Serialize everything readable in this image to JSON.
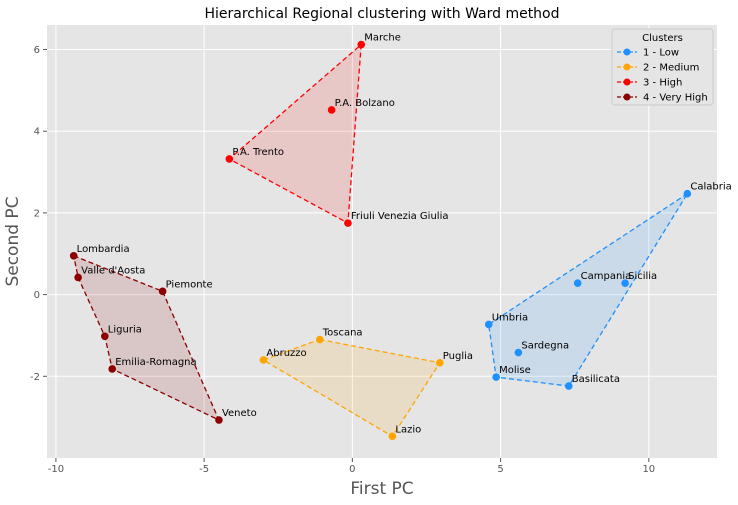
{
  "chart_data": {
    "type": "scatter",
    "title": "Hierarchical Regional clustering with Ward method",
    "xlabel": "First PC",
    "ylabel": "Second PC",
    "xlim": [
      -10.3,
      12.3
    ],
    "ylim": [
      -4.0,
      6.6
    ],
    "xticks": [
      -10,
      -5,
      0,
      5,
      10
    ],
    "yticks": [
      -2,
      0,
      2,
      4,
      6
    ],
    "grid": true,
    "legend": {
      "title": "Clusters",
      "position": "top-right"
    },
    "series": [
      {
        "name": "1 - Low",
        "color": "#1e90ff",
        "points": [
          {
            "label": "Calabria",
            "x": 11.3,
            "y": 2.47
          },
          {
            "label": "Campania",
            "x": 7.6,
            "y": 0.28
          },
          {
            "label": "Sicilia",
            "x": 9.2,
            "y": 0.28
          },
          {
            "label": "Umbria",
            "x": 4.6,
            "y": -0.73
          },
          {
            "label": "Sardegna",
            "x": 5.6,
            "y": -1.42
          },
          {
            "label": "Molise",
            "x": 4.85,
            "y": -2.02
          },
          {
            "label": "Basilicata",
            "x": 7.3,
            "y": -2.24
          }
        ],
        "hull": [
          "Calabria",
          "Umbria",
          "Molise",
          "Basilicata"
        ]
      },
      {
        "name": "2 - Medium",
        "color": "#ffa500",
        "points": [
          {
            "label": "Toscana",
            "x": -1.1,
            "y": -1.1
          },
          {
            "label": "Abruzzo",
            "x": -3.0,
            "y": -1.6
          },
          {
            "label": "Puglia",
            "x": 2.95,
            "y": -1.67
          },
          {
            "label": "Lazio",
            "x": 1.35,
            "y": -3.47
          }
        ],
        "hull": [
          "Toscana",
          "Puglia",
          "Lazio",
          "Abruzzo"
        ]
      },
      {
        "name": "3 - High",
        "color": "#ff0000",
        "points": [
          {
            "label": "Marche",
            "x": 0.3,
            "y": 6.12
          },
          {
            "label": "P.A. Bolzano",
            "x": -0.7,
            "y": 4.52
          },
          {
            "label": "P.A. Trento",
            "x": -4.15,
            "y": 3.32
          },
          {
            "label": "Friuli Venezia Giulia",
            "x": -0.15,
            "y": 1.75
          }
        ],
        "hull": [
          "Marche",
          "Friuli Venezia Giulia",
          "P.A. Trento"
        ]
      },
      {
        "name": "4 - Very High",
        "color": "#8b0000",
        "points": [
          {
            "label": "Lombardia",
            "x": -9.4,
            "y": 0.95
          },
          {
            "label": "Valle d'Aosta",
            "x": -9.25,
            "y": 0.42
          },
          {
            "label": "Piemonte",
            "x": -6.4,
            "y": 0.08
          },
          {
            "label": "Liguria",
            "x": -8.35,
            "y": -1.02
          },
          {
            "label": "Emilia-Romagna",
            "x": -8.1,
            "y": -1.82
          },
          {
            "label": "Veneto",
            "x": -4.5,
            "y": -3.07
          }
        ],
        "hull": [
          "Lombardia",
          "Piemonte",
          "Veneto",
          "Emilia-Romagna",
          "Liguria",
          "Valle d'Aosta"
        ]
      }
    ]
  }
}
